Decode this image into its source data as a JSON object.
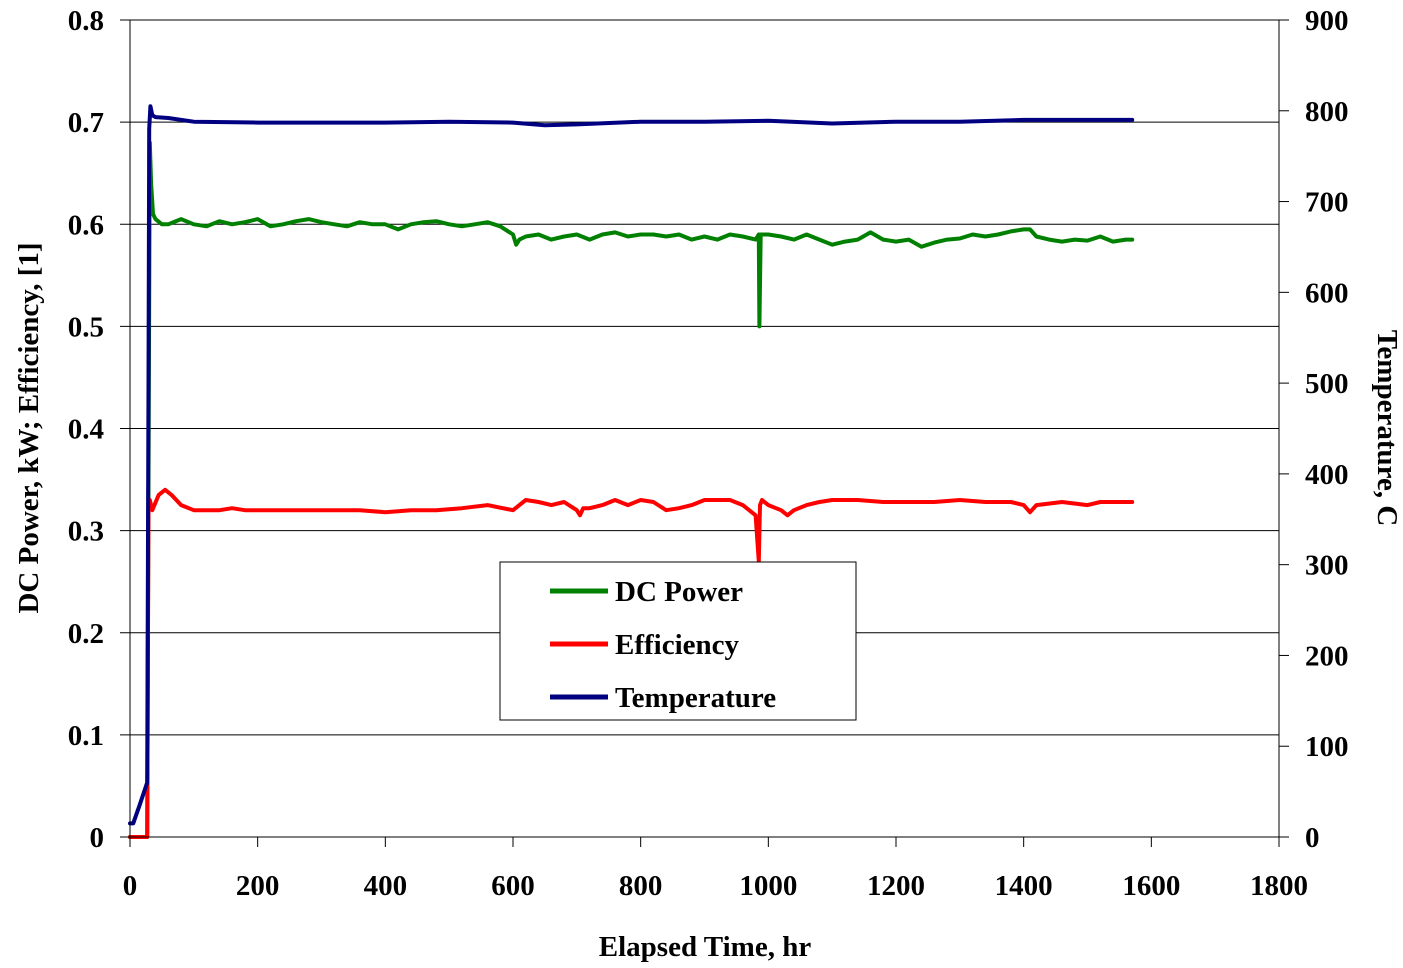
{
  "chart_data": {
    "type": "line",
    "title": "",
    "xlabel": "Elapsed Time, hr",
    "ylabel_left": "DC Power, kW; Efficiency, [1]",
    "ylabel_right": "Temperature, C",
    "xlim": [
      0,
      1800
    ],
    "ylim_left": [
      0,
      0.8
    ],
    "ylim_right": [
      0,
      900
    ],
    "x_ticks": [
      "0",
      "200",
      "400",
      "600",
      "800",
      "1000",
      "1200",
      "1400",
      "1600",
      "1800"
    ],
    "y_left_ticks": [
      "0",
      "0.1",
      "0.2",
      "0.3",
      "0.4",
      "0.5",
      "0.6",
      "0.7",
      "0.8"
    ],
    "y_right_ticks": [
      "0",
      "100",
      "200",
      "300",
      "400",
      "500",
      "600",
      "700",
      "800",
      "900"
    ],
    "grid": "horizontal",
    "legend_position": "center",
    "series": [
      {
        "name": "DC Power",
        "axis": "left",
        "color": "#008000",
        "x": [
          0,
          27,
          29,
          31,
          33,
          36,
          40,
          50,
          60,
          80,
          100,
          120,
          140,
          160,
          180,
          200,
          220,
          240,
          260,
          280,
          300,
          320,
          340,
          360,
          380,
          400,
          420,
          440,
          460,
          480,
          500,
          520,
          540,
          560,
          580,
          600,
          605,
          610,
          620,
          640,
          660,
          680,
          700,
          720,
          740,
          760,
          780,
          800,
          820,
          840,
          860,
          880,
          900,
          920,
          940,
          960,
          980,
          985,
          986,
          988,
          990,
          1000,
          1020,
          1040,
          1060,
          1080,
          1100,
          1120,
          1140,
          1160,
          1180,
          1200,
          1220,
          1240,
          1260,
          1280,
          1300,
          1320,
          1340,
          1360,
          1380,
          1400,
          1410,
          1420,
          1440,
          1460,
          1480,
          1500,
          1520,
          1540,
          1560,
          1570
        ],
        "y": [
          0,
          0,
          0.35,
          0.68,
          0.64,
          0.61,
          0.605,
          0.6,
          0.6,
          0.605,
          0.6,
          0.598,
          0.603,
          0.6,
          0.602,
          0.605,
          0.598,
          0.6,
          0.603,
          0.605,
          0.602,
          0.6,
          0.598,
          0.602,
          0.6,
          0.6,
          0.595,
          0.6,
          0.602,
          0.603,
          0.6,
          0.598,
          0.6,
          0.602,
          0.598,
          0.59,
          0.58,
          0.585,
          0.588,
          0.59,
          0.585,
          0.588,
          0.59,
          0.585,
          0.59,
          0.592,
          0.588,
          0.59,
          0.59,
          0.588,
          0.59,
          0.585,
          0.588,
          0.585,
          0.59,
          0.588,
          0.585,
          0.59,
          0.5,
          0.59,
          0.59,
          0.59,
          0.588,
          0.585,
          0.59,
          0.585,
          0.58,
          0.583,
          0.585,
          0.592,
          0.585,
          0.583,
          0.585,
          0.578,
          0.582,
          0.585,
          0.586,
          0.59,
          0.588,
          0.59,
          0.593,
          0.595,
          0.595,
          0.588,
          0.585,
          0.583,
          0.585,
          0.584,
          0.588,
          0.583,
          0.585,
          0.585
        ]
      },
      {
        "name": "Efficiency",
        "axis": "left",
        "color": "#FF0000",
        "x": [
          0,
          27,
          29,
          31,
          35,
          45,
          55,
          65,
          80,
          100,
          120,
          140,
          160,
          180,
          200,
          240,
          280,
          320,
          360,
          400,
          440,
          480,
          520,
          560,
          600,
          610,
          620,
          640,
          660,
          680,
          700,
          705,
          710,
          720,
          740,
          760,
          780,
          800,
          820,
          840,
          860,
          880,
          900,
          920,
          940,
          960,
          980,
          985,
          987,
          990,
          1000,
          1020,
          1030,
          1040,
          1060,
          1080,
          1100,
          1140,
          1180,
          1220,
          1260,
          1300,
          1340,
          1380,
          1400,
          1410,
          1420,
          1460,
          1500,
          1520,
          1560,
          1570
        ],
        "y": [
          0,
          0,
          0.33,
          0.33,
          0.32,
          0.335,
          0.34,
          0.335,
          0.325,
          0.32,
          0.32,
          0.32,
          0.322,
          0.32,
          0.32,
          0.32,
          0.32,
          0.32,
          0.32,
          0.318,
          0.32,
          0.32,
          0.322,
          0.325,
          0.32,
          0.325,
          0.33,
          0.328,
          0.325,
          0.328,
          0.32,
          0.315,
          0.322,
          0.322,
          0.325,
          0.33,
          0.325,
          0.33,
          0.328,
          0.32,
          0.322,
          0.325,
          0.33,
          0.33,
          0.33,
          0.325,
          0.315,
          0.27,
          0.325,
          0.33,
          0.325,
          0.32,
          0.315,
          0.32,
          0.325,
          0.328,
          0.33,
          0.33,
          0.328,
          0.328,
          0.328,
          0.33,
          0.328,
          0.328,
          0.325,
          0.318,
          0.325,
          0.328,
          0.325,
          0.328,
          0.328,
          0.328
        ]
      },
      {
        "name": "Temperature",
        "axis": "right",
        "color": "#000080",
        "x": [
          0,
          5,
          15,
          27,
          29,
          30,
          32,
          35,
          40,
          60,
          80,
          100,
          200,
          300,
          400,
          500,
          600,
          650,
          700,
          800,
          900,
          1000,
          1100,
          1200,
          1300,
          1400,
          1500,
          1570
        ],
        "y": [
          15,
          15,
          35,
          60,
          500,
          780,
          805,
          795,
          793,
          792,
          790,
          788,
          787,
          787,
          787,
          788,
          787,
          784,
          785,
          788,
          788,
          789,
          786,
          788,
          788,
          790,
          790,
          790
        ]
      }
    ]
  }
}
